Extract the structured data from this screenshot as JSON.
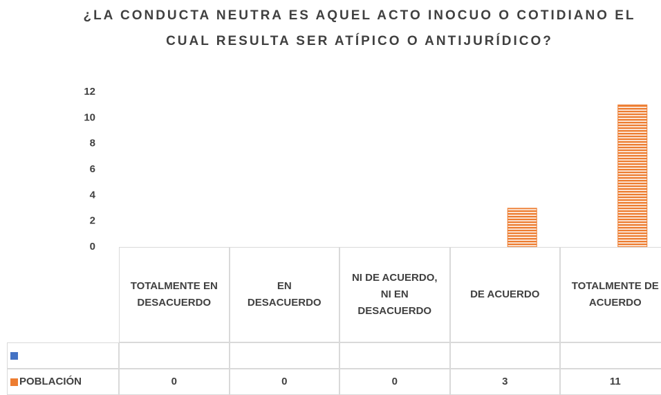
{
  "chart_data": {
    "type": "bar",
    "title": "¿LA CONDUCTA NEUTRA ES AQUEL ACTO INOCUO O COTIDIANO EL CUAL RESULTA SER ATÍPICO O ANTIJURÍDICO?",
    "categories": [
      "TOTALMENTE EN DESACUERDO",
      "EN DESACUERDO",
      "NI DE ACUERDO, NI EN DESACUERDO",
      "DE ACUERDO",
      "TOTALMENTE DE ACUERDO"
    ],
    "series": [
      {
        "name": null,
        "color": "#4472c4",
        "values": [
          null,
          null,
          null,
          null,
          null
        ]
      },
      {
        "name": "POBLACIÓN",
        "color": "#ed7d31",
        "values": [
          0,
          0,
          0,
          3,
          11
        ]
      }
    ],
    "ylim": [
      0,
      12
    ],
    "yticks": [
      0,
      2,
      4,
      6,
      8,
      10,
      12
    ],
    "grid": false
  }
}
